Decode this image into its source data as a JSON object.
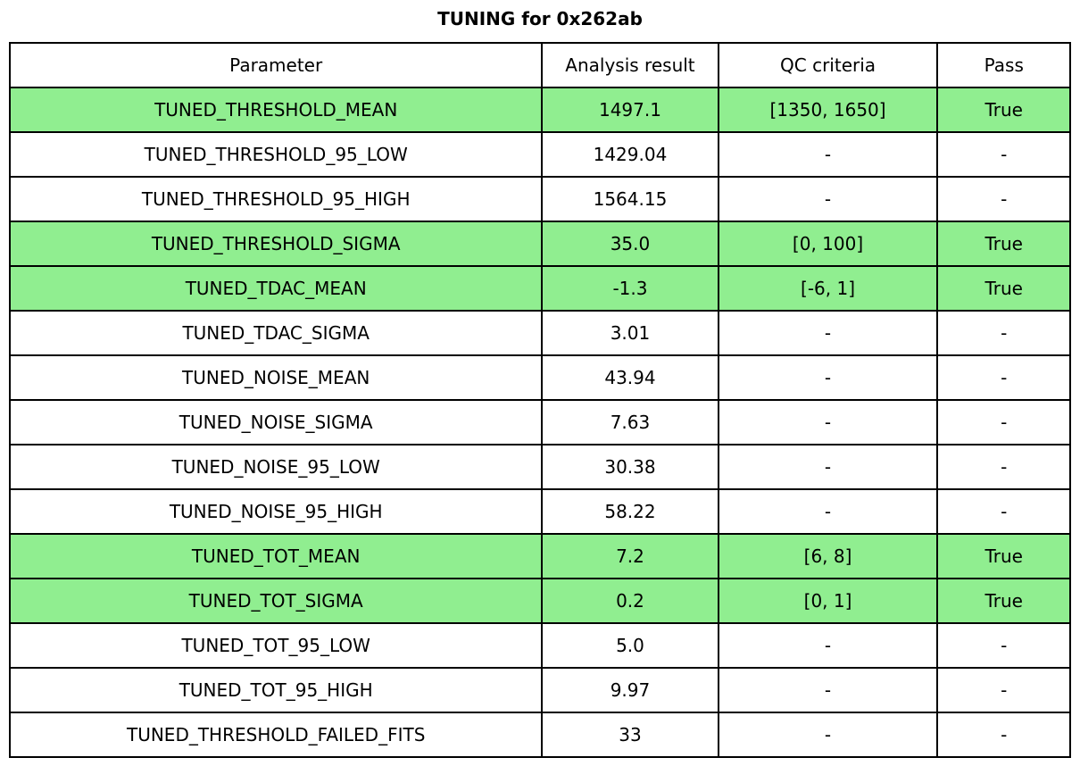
{
  "colors": {
    "highlight_green": "#90EE90",
    "border_black": "#000000",
    "background_white": "#FFFFFF"
  },
  "chart_data": {
    "type": "table",
    "title": "TUNING for 0x262ab",
    "columns": [
      "Parameter",
      "Analysis result",
      "QC criteria",
      "Pass"
    ],
    "rows": [
      {
        "parameter": "TUNED_THRESHOLD_MEAN",
        "analysis_result": "1497.1",
        "qc_criteria": "[1350, 1650]",
        "pass": "True",
        "highlighted": true
      },
      {
        "parameter": "TUNED_THRESHOLD_95_LOW",
        "analysis_result": "1429.04",
        "qc_criteria": "-",
        "pass": "-",
        "highlighted": false
      },
      {
        "parameter": "TUNED_THRESHOLD_95_HIGH",
        "analysis_result": "1564.15",
        "qc_criteria": "-",
        "pass": "-",
        "highlighted": false
      },
      {
        "parameter": "TUNED_THRESHOLD_SIGMA",
        "analysis_result": "35.0",
        "qc_criteria": "[0, 100]",
        "pass": "True",
        "highlighted": true
      },
      {
        "parameter": "TUNED_TDAC_MEAN",
        "analysis_result": "-1.3",
        "qc_criteria": "[-6, 1]",
        "pass": "True",
        "highlighted": true
      },
      {
        "parameter": "TUNED_TDAC_SIGMA",
        "analysis_result": "3.01",
        "qc_criteria": "-",
        "pass": "-",
        "highlighted": false
      },
      {
        "parameter": "TUNED_NOISE_MEAN",
        "analysis_result": "43.94",
        "qc_criteria": "-",
        "pass": "-",
        "highlighted": false
      },
      {
        "parameter": "TUNED_NOISE_SIGMA",
        "analysis_result": "7.63",
        "qc_criteria": "-",
        "pass": "-",
        "highlighted": false
      },
      {
        "parameter": "TUNED_NOISE_95_LOW",
        "analysis_result": "30.38",
        "qc_criteria": "-",
        "pass": "-",
        "highlighted": false
      },
      {
        "parameter": "TUNED_NOISE_95_HIGH",
        "analysis_result": "58.22",
        "qc_criteria": "-",
        "pass": "-",
        "highlighted": false
      },
      {
        "parameter": "TUNED_TOT_MEAN",
        "analysis_result": "7.2",
        "qc_criteria": "[6, 8]",
        "pass": "True",
        "highlighted": true
      },
      {
        "parameter": "TUNED_TOT_SIGMA",
        "analysis_result": "0.2",
        "qc_criteria": "[0, 1]",
        "pass": "True",
        "highlighted": true
      },
      {
        "parameter": "TUNED_TOT_95_LOW",
        "analysis_result": "5.0",
        "qc_criteria": "-",
        "pass": "-",
        "highlighted": false
      },
      {
        "parameter": "TUNED_TOT_95_HIGH",
        "analysis_result": "9.97",
        "qc_criteria": "-",
        "pass": "-",
        "highlighted": false
      },
      {
        "parameter": "TUNED_THRESHOLD_FAILED_FITS",
        "analysis_result": "33",
        "qc_criteria": "-",
        "pass": "-",
        "highlighted": false
      }
    ]
  }
}
